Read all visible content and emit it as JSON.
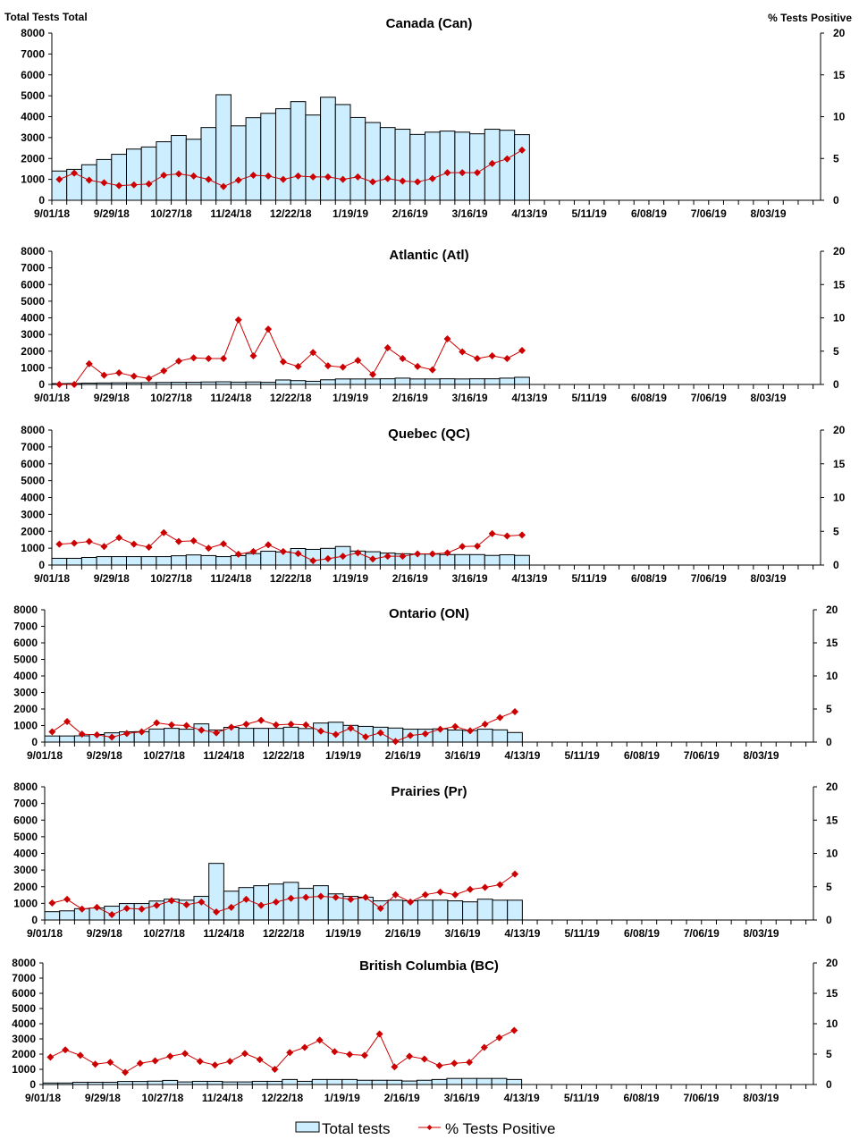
{
  "chart_data": [
    {
      "type": "bar+line",
      "title": "Canada (Can)",
      "ylabel": "Total Tests Total",
      "y2label": "% Tests Positive",
      "ylim": [
        0,
        8000
      ],
      "y2lim": [
        0,
        20
      ],
      "yticks": [
        0,
        1000,
        2000,
        3000,
        4000,
        5000,
        6000,
        7000,
        8000
      ],
      "y2ticks": [
        0,
        5,
        10,
        15,
        20
      ],
      "xticklabels": [
        "9/01/18",
        "9/29/18",
        "10/27/18",
        "11/24/18",
        "12/22/18",
        "1/19/19",
        "2/16/19",
        "3/16/19",
        "4/13/19",
        "5/11/19",
        "6/08/19",
        "7/06/19",
        "8/03/19"
      ],
      "series": [
        {
          "name": "Total tests",
          "type": "bar",
          "values": [
            1400,
            1480,
            1700,
            1950,
            2200,
            2450,
            2550,
            2800,
            3100,
            2920,
            3480,
            5050,
            3560,
            3950,
            4160,
            4380,
            4720,
            4080,
            4930,
            4580,
            3960,
            3720,
            3480,
            3400,
            3150,
            3260,
            3310,
            3260,
            3180,
            3400,
            3350,
            3140
          ]
        },
        {
          "name": "% Tests Positive",
          "type": "line",
          "axis": "right",
          "values": [
            2.5,
            3.25,
            2.4,
            2.1,
            1.75,
            1.85,
            1.95,
            3.0,
            3.15,
            2.9,
            2.5,
            1.65,
            2.4,
            3.0,
            2.9,
            2.5,
            2.9,
            2.8,
            2.8,
            2.5,
            2.8,
            2.2,
            2.6,
            2.3,
            2.2,
            2.6,
            3.3,
            3.3,
            3.3,
            4.4,
            4.95,
            6.0
          ]
        }
      ]
    },
    {
      "type": "bar+line",
      "title": "Atlantic (Atl)",
      "ylim": [
        0,
        8000
      ],
      "y2lim": [
        0,
        20
      ],
      "yticks": [
        0,
        1000,
        2000,
        3000,
        4000,
        5000,
        6000,
        7000,
        8000
      ],
      "y2ticks": [
        0,
        5,
        10,
        15,
        20
      ],
      "xticklabels": [
        "9/01/18",
        "9/29/18",
        "10/27/18",
        "11/24/18",
        "12/22/18",
        "1/19/19",
        "2/16/19",
        "3/16/19",
        "4/13/19",
        "5/11/19",
        "6/08/19",
        "7/06/19",
        "8/03/19"
      ],
      "series": [
        {
          "name": "Total tests",
          "type": "bar",
          "values": [
            50,
            60,
            80,
            90,
            100,
            100,
            110,
            120,
            130,
            130,
            150,
            160,
            140,
            150,
            130,
            270,
            230,
            190,
            280,
            330,
            330,
            330,
            340,
            380,
            330,
            330,
            340,
            330,
            340,
            340,
            380,
            430
          ]
        },
        {
          "name": "% Tests Positive",
          "type": "line",
          "axis": "right",
          "values": [
            0,
            0,
            3.1,
            1.4,
            1.75,
            1.25,
            0.9,
            2.05,
            3.5,
            4.0,
            3.9,
            3.9,
            9.7,
            4.3,
            8.3,
            3.4,
            2.7,
            4.8,
            2.8,
            2.6,
            3.6,
            1.5,
            5.5,
            3.9,
            2.7,
            2.2,
            6.85,
            4.9,
            3.9,
            4.3,
            3.9,
            5.1
          ]
        }
      ]
    },
    {
      "type": "bar+line",
      "title": "Quebec (QC)",
      "ylim": [
        0,
        8000
      ],
      "y2lim": [
        0,
        20
      ],
      "yticks": [
        0,
        1000,
        2000,
        3000,
        4000,
        5000,
        6000,
        7000,
        8000
      ],
      "y2ticks": [
        0,
        5,
        10,
        15,
        20
      ],
      "xticklabels": [
        "9/01/18",
        "9/29/18",
        "10/27/18",
        "11/24/18",
        "12/22/18",
        "1/19/19",
        "2/16/19",
        "3/16/19",
        "4/13/19",
        "5/11/19",
        "6/08/19",
        "7/06/19",
        "8/03/19"
      ],
      "series": [
        {
          "name": "Total tests",
          "type": "bar",
          "values": [
            400,
            400,
            450,
            500,
            500,
            500,
            500,
            500,
            550,
            600,
            560,
            500,
            560,
            680,
            820,
            780,
            980,
            930,
            990,
            1100,
            830,
            790,
            710,
            670,
            650,
            650,
            620,
            620,
            620,
            570,
            610,
            570
          ]
        },
        {
          "name": "% Tests Positive",
          "type": "line",
          "axis": "right",
          "values": [
            3.1,
            3.25,
            3.5,
            2.75,
            4.05,
            3.1,
            2.65,
            4.8,
            3.5,
            3.6,
            2.5,
            3.15,
            1.6,
            2.0,
            3.0,
            2.0,
            1.7,
            0.65,
            0.95,
            1.3,
            1.8,
            0.9,
            1.3,
            1.3,
            1.65,
            1.65,
            1.8,
            2.75,
            2.8,
            4.65,
            4.3,
            4.45
          ]
        }
      ]
    },
    {
      "type": "bar+line",
      "title": "Ontario (ON)",
      "ylim": [
        0,
        8000
      ],
      "y2lim": [
        0,
        20
      ],
      "yticks": [
        0,
        1000,
        2000,
        3000,
        4000,
        5000,
        6000,
        7000,
        8000
      ],
      "y2ticks": [
        0,
        5,
        10,
        15,
        20
      ],
      "xticklabels": [
        "9/01/18",
        "9/29/18",
        "10/27/18",
        "11/24/18",
        "12/22/18",
        "1/19/19",
        "2/16/19",
        "3/16/19",
        "4/13/19",
        "5/11/19",
        "6/08/19",
        "7/06/19",
        "8/03/19"
      ],
      "series": [
        {
          "name": "Total tests",
          "type": "bar",
          "values": [
            370,
            370,
            380,
            460,
            560,
            620,
            630,
            790,
            830,
            780,
            1100,
            730,
            890,
            830,
            830,
            830,
            900,
            820,
            1150,
            1200,
            1010,
            950,
            900,
            850,
            780,
            780,
            800,
            730,
            700,
            780,
            740,
            580
          ]
        },
        {
          "name": "% Tests Positive",
          "type": "line",
          "axis": "right",
          "values": [
            1.55,
            3.1,
            1.2,
            1.1,
            0.75,
            1.3,
            1.55,
            2.9,
            2.6,
            2.5,
            1.8,
            1.4,
            2.25,
            2.7,
            3.3,
            2.6,
            2.7,
            2.6,
            1.65,
            1.15,
            2.1,
            0.8,
            1.4,
            0.1,
            1.0,
            1.25,
            1.95,
            2.35,
            1.7,
            2.7,
            3.7,
            4.6
          ]
        }
      ]
    },
    {
      "type": "bar+line",
      "title": "Prairies (Pr)",
      "ylim": [
        0,
        8000
      ],
      "y2lim": [
        0,
        20
      ],
      "yticks": [
        0,
        1000,
        2000,
        3000,
        4000,
        5000,
        6000,
        7000,
        8000
      ],
      "y2ticks": [
        0,
        5,
        10,
        15,
        20
      ],
      "xticklabels": [
        "9/01/18",
        "9/29/18",
        "10/27/18",
        "11/24/18",
        "12/22/18",
        "1/19/19",
        "2/16/19",
        "3/16/19",
        "4/13/19",
        "5/11/19",
        "6/08/19",
        "7/06/19",
        "8/03/19"
      ],
      "series": [
        {
          "name": "Total tests",
          "type": "bar",
          "values": [
            500,
            550,
            680,
            720,
            830,
            990,
            990,
            1140,
            1250,
            1190,
            1420,
            3400,
            1730,
            1950,
            2060,
            2160,
            2260,
            1900,
            2060,
            1570,
            1420,
            1370,
            1150,
            1190,
            1150,
            1190,
            1190,
            1150,
            1090,
            1250,
            1190,
            1190
          ]
        },
        {
          "name": "% Tests Positive",
          "type": "line",
          "axis": "right",
          "values": [
            2.55,
            3.1,
            1.65,
            1.9,
            0.8,
            1.75,
            1.65,
            2.2,
            2.9,
            2.3,
            2.7,
            1.2,
            1.9,
            3.1,
            2.2,
            2.7,
            3.25,
            3.4,
            3.55,
            3.4,
            3.1,
            3.4,
            1.75,
            3.8,
            2.7,
            3.8,
            4.2,
            3.8,
            4.6,
            4.9,
            5.3,
            6.9
          ]
        }
      ]
    },
    {
      "type": "bar+line",
      "title": "British Columbia (BC)",
      "ylim": [
        0,
        8000
      ],
      "y2lim": [
        0,
        20
      ],
      "yticks": [
        0,
        1000,
        2000,
        3000,
        4000,
        5000,
        6000,
        7000,
        8000
      ],
      "y2ticks": [
        0,
        5,
        10,
        15,
        20
      ],
      "xticklabels": [
        "9/01/18",
        "9/29/18",
        "10/27/18",
        "11/24/18",
        "12/22/18",
        "1/19/19",
        "2/16/19",
        "3/16/19",
        "4/13/19",
        "5/11/19",
        "6/08/19",
        "7/06/19",
        "8/03/19"
      ],
      "series": [
        {
          "name": "Total tests",
          "type": "bar",
          "values": [
            100,
            100,
            150,
            150,
            150,
            200,
            200,
            220,
            270,
            170,
            210,
            210,
            170,
            170,
            210,
            210,
            330,
            210,
            330,
            330,
            330,
            280,
            280,
            280,
            230,
            280,
            330,
            400,
            400,
            400,
            400,
            330
          ]
        },
        {
          "name": "% Tests Positive",
          "type": "line",
          "axis": "right",
          "values": [
            4.5,
            5.7,
            4.8,
            3.35,
            3.65,
            2.0,
            3.5,
            3.9,
            4.65,
            5.1,
            3.8,
            3.2,
            3.8,
            5.1,
            4.1,
            2.5,
            5.25,
            6.1,
            7.3,
            5.4,
            4.95,
            4.8,
            8.3,
            2.9,
            4.65,
            4.2,
            3.1,
            3.5,
            3.65,
            6.1,
            7.7,
            8.9
          ]
        }
      ]
    }
  ],
  "legend": {
    "bar_label": "Total tests",
    "line_label": "% Tests Positive",
    "placement": "bottom"
  },
  "colors": {
    "bar_fill": "#cceeff",
    "bar_stroke": "#000000",
    "line": "#cc0000"
  }
}
